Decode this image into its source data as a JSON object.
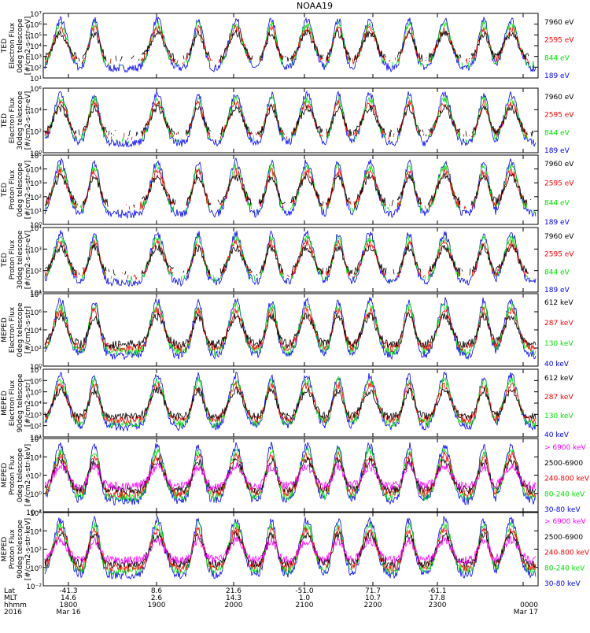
{
  "colors": {
    "blue": "#0000ff",
    "red": "#ff0000",
    "green": "#00e000",
    "black": "#000000",
    "magenta": "#ff00ff"
  },
  "chart_data": {
    "type": "line",
    "title": "NOAA19",
    "xaxis": {
      "row_labels": [
        "Lat",
        "MLT",
        "hhmm",
        "2016"
      ],
      "ticks": [
        {
          "lat": "-41.3",
          "mlt": "14.6",
          "hhmm": "1800",
          "date": "Mar 16"
        },
        {
          "lat": "8.6",
          "mlt": "2.6",
          "hhmm": "1900",
          "date": ""
        },
        {
          "lat": "21.6",
          "mlt": "14.3",
          "hhmm": "2000",
          "date": ""
        },
        {
          "lat": "-51.0",
          "mlt": "1.0",
          "hhmm": "2100",
          "date": ""
        },
        {
          "lat": "71.7",
          "mlt": "10.7",
          "hhmm": "2200",
          "date": ""
        },
        {
          "lat": "-61.1",
          "mlt": "17.8",
          "hhmm": "2300",
          "date": ""
        },
        {
          "lat": "",
          "mlt": "",
          "hhmm": "0000",
          "date": "Mar 17"
        }
      ]
    },
    "panels": [
      {
        "ylabel": [
          "TED",
          "Electron Flux",
          "0deg telescope",
          "[#/cm2-s-str-eV]"
        ],
        "ylim_exp": [
          1,
          7
        ],
        "tick_labels": [
          "10¹",
          "10²",
          "10³",
          "10⁴",
          "10⁵",
          "10⁶",
          "10⁷"
        ],
        "legend": [
          {
            "label": "7960 eV",
            "color": "#000000"
          },
          {
            "label": "2595 eV",
            "color": "#ff0000"
          },
          {
            "label": "844 eV",
            "color": "#00e000"
          },
          {
            "label": "189 eV",
            "color": "#0000ff"
          }
        ]
      },
      {
        "ylabel": [
          "TED",
          "Electron Flux",
          "30deg telescope",
          "[#/cm2-s-str-eV]"
        ],
        "ylim_exp": [
          0,
          6
        ],
        "tick_labels": [
          "10⁰",
          "10²",
          "10⁴",
          "10⁶"
        ],
        "legend": [
          {
            "label": "7960 eV",
            "color": "#000000"
          },
          {
            "label": "2595 eV",
            "color": "#ff0000"
          },
          {
            "label": "844 eV",
            "color": "#00e000"
          },
          {
            "label": "189 eV",
            "color": "#0000ff"
          }
        ]
      },
      {
        "ylabel": [
          "TED",
          "Proton Flux",
          "0deg telescope",
          "[#/cm2-s-str-eV]"
        ],
        "ylim_exp": [
          0,
          5
        ],
        "tick_labels": [
          "10⁰",
          "10¹",
          "10²",
          "10³",
          "10⁴",
          "10⁵"
        ],
        "legend": [
          {
            "label": "7960 eV",
            "color": "#000000"
          },
          {
            "label": "2595 eV",
            "color": "#ff0000"
          },
          {
            "label": "844 eV",
            "color": "#00e000"
          },
          {
            "label": "189 eV",
            "color": "#0000ff"
          }
        ]
      },
      {
        "ylabel": [
          "TED",
          "Proton Flux",
          "30deg telescope",
          "[#/cm2-s-str-eV]"
        ],
        "ylim_exp": [
          0,
          4
        ],
        "tick_labels": [
          "10¹",
          "10²",
          "10³",
          "10⁴"
        ],
        "legend": [
          {
            "label": "7960 eV",
            "color": "#000000"
          },
          {
            "label": "2595 eV",
            "color": "#ff0000"
          },
          {
            "label": "844 eV",
            "color": "#00e000"
          },
          {
            "label": "189 eV",
            "color": "#0000ff"
          }
        ]
      },
      {
        "ylabel": [
          "MEPED",
          "Electron Flux",
          "0deg telescope",
          "[#/cm2-s-str]"
        ],
        "ylim_exp": [
          0,
          8
        ],
        "tick_labels": [
          "10⁰",
          "10²",
          "10⁴",
          "10⁶",
          "10⁸"
        ],
        "legend": [
          {
            "label": "612 keV",
            "color": "#000000"
          },
          {
            "label": "287 keV",
            "color": "#ff0000"
          },
          {
            "label": "130 keV",
            "color": "#00e000"
          },
          {
            "label": "40 keV",
            "color": "#0000ff"
          }
        ]
      },
      {
        "ylabel": [
          "MEPED",
          "Electron Flux",
          "90deg telescope",
          "[#/cm2-s-str]"
        ],
        "ylim_exp": [
          1,
          7
        ],
        "tick_labels": [
          "10¹",
          "10²",
          "10³",
          "10⁴",
          "10⁵",
          "10⁶",
          "10⁷"
        ],
        "legend": [
          {
            "label": "612 keV",
            "color": "#000000"
          },
          {
            "label": "287 keV",
            "color": "#ff0000"
          },
          {
            "label": "130 keV",
            "color": "#00e000"
          },
          {
            "label": "40 keV",
            "color": "#0000ff"
          }
        ]
      },
      {
        "ylabel": [
          "MEPED",
          "Proton Flux",
          "0deg telescope",
          "[#/cm2-s-str-keV]"
        ],
        "ylim_exp": [
          -2,
          6
        ],
        "tick_labels": [
          "10⁻²",
          "10⁰",
          "10²",
          "10⁴",
          "10⁶"
        ],
        "legend": [
          {
            "label": "> 6900 keV",
            "color": "#ff00ff"
          },
          {
            "label": "2500-6900",
            "color": "#000000"
          },
          {
            "label": "240-800 keV",
            "color": "#ff0000"
          },
          {
            "label": "80-240 keV",
            "color": "#00e000"
          },
          {
            "label": "30-80 keV",
            "color": "#0000ff"
          }
        ]
      },
      {
        "ylabel": [
          "MEPED",
          "Proton Flux",
          "90deg telescope",
          "[#/cm2-s-str-keV]"
        ],
        "ylim_exp": [
          -2,
          6
        ],
        "tick_labels": [
          "10⁻²",
          "10⁰",
          "10²",
          "10⁴",
          "10⁶"
        ],
        "legend": [
          {
            "label": "> 6900 keV",
            "color": "#ff00ff"
          },
          {
            "label": "2500-6900",
            "color": "#000000"
          },
          {
            "label": "240-800 keV",
            "color": "#ff0000"
          },
          {
            "label": "80-240 keV",
            "color": "#00e000"
          },
          {
            "label": "30-80 keV",
            "color": "#0000ff"
          }
        ]
      }
    ]
  }
}
